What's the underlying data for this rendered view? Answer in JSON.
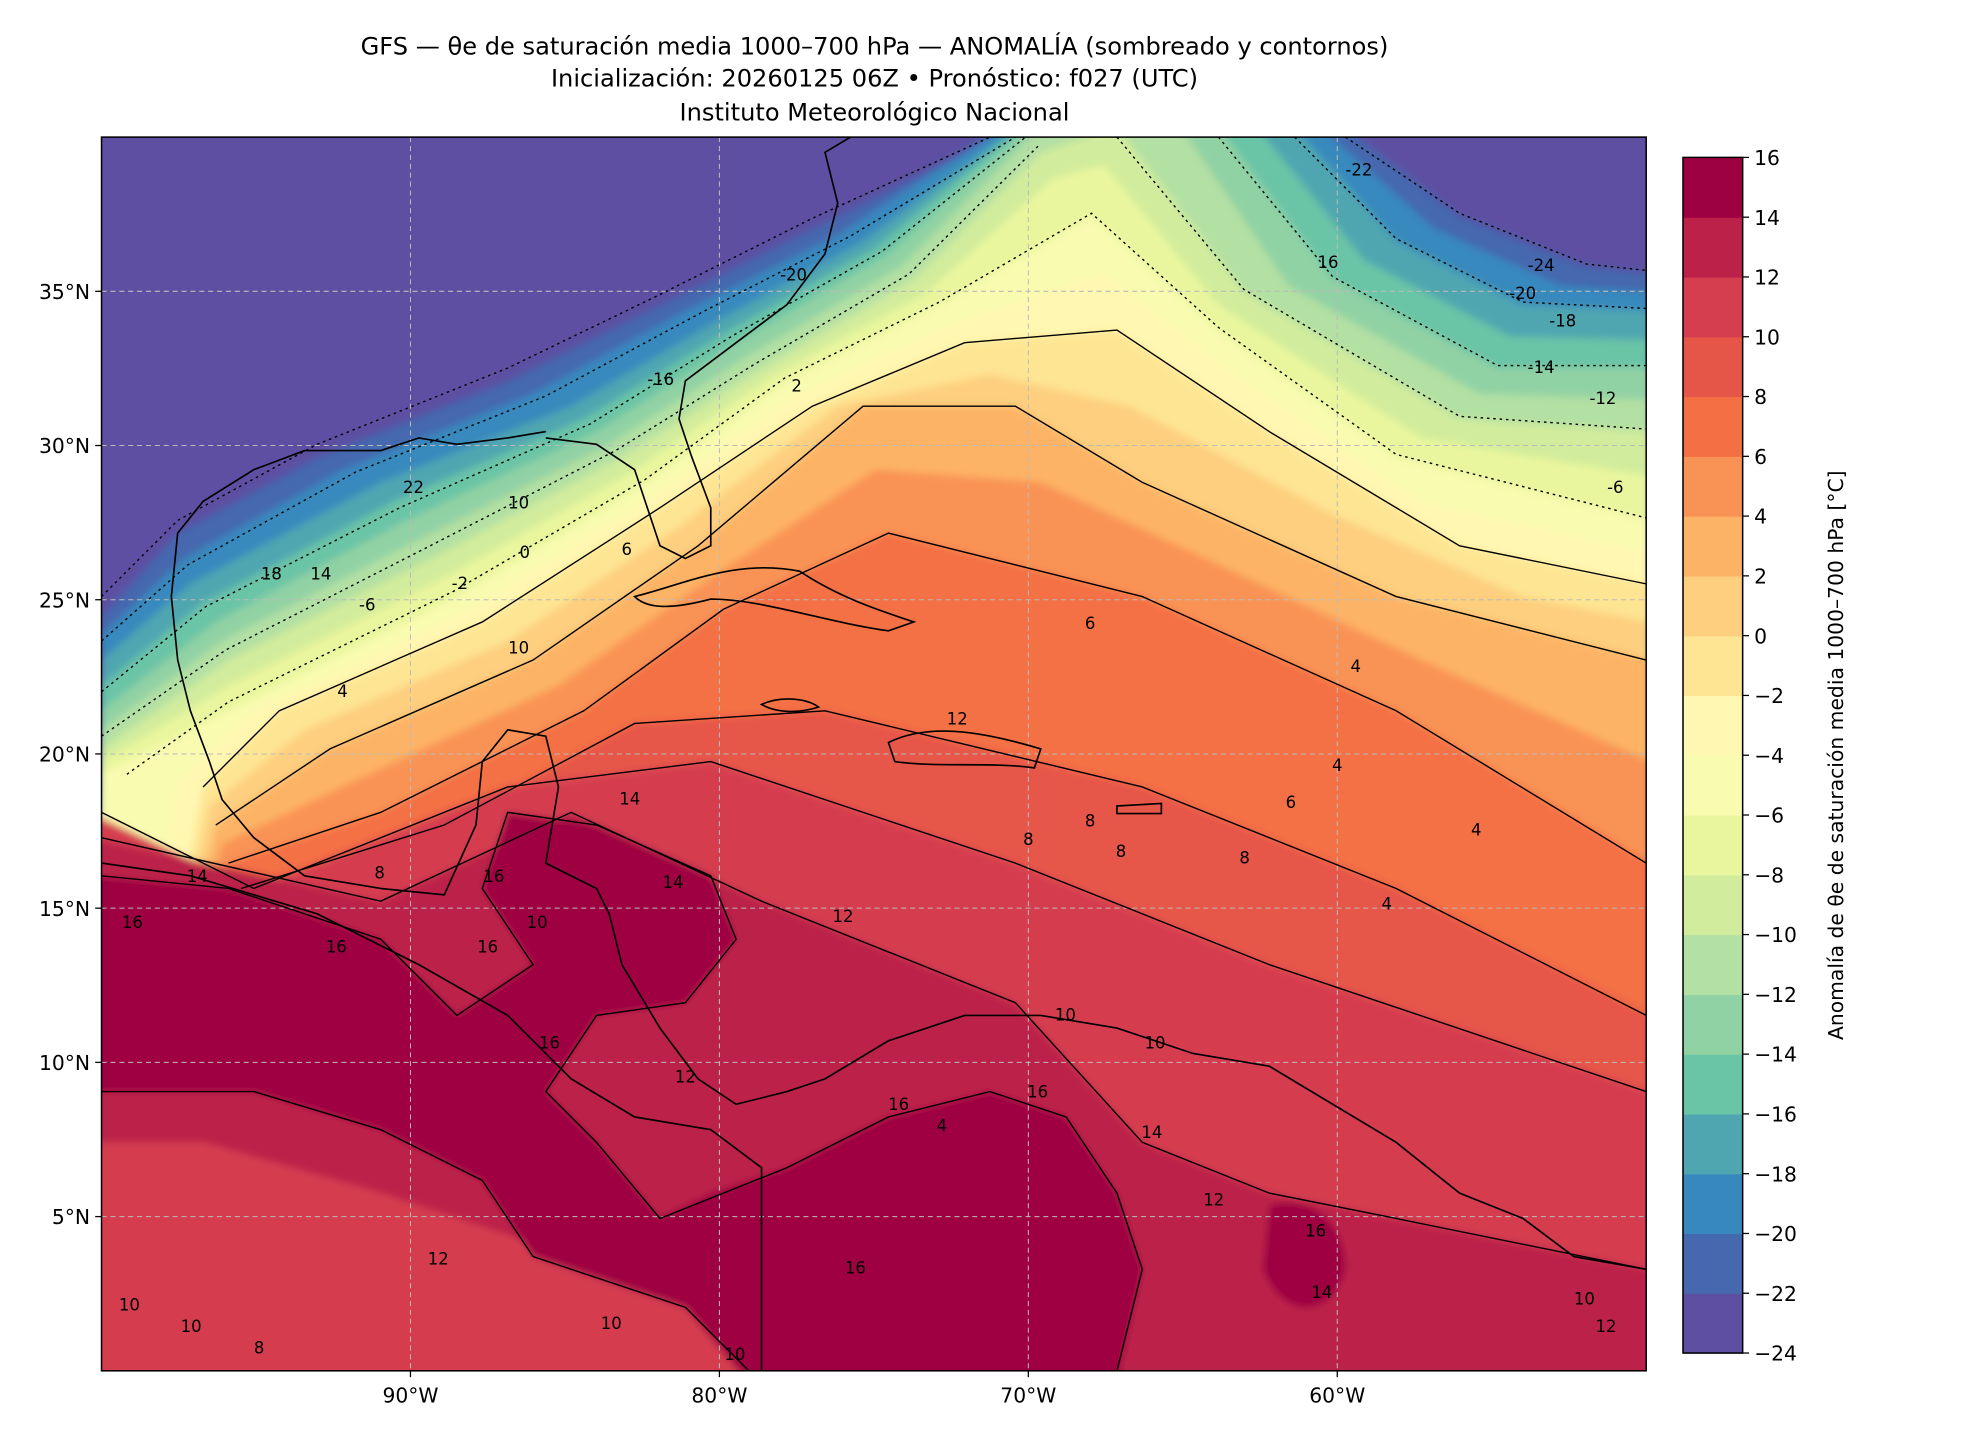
{
  "chart_data": {
    "type": "heatmap",
    "title_lines": [
      "GFS — θe de saturación media 1000–700 hPa — ANOMALÍA (sombreado y contornos)",
      "Inicialización: 20260125 06Z   •   Pronóstico: f027 (UTC)",
      "Instituto Meteorológico Nacional"
    ],
    "lon_range": [
      -100,
      -50
    ],
    "lat_range": [
      0,
      40
    ],
    "x_ticks": [
      {
        "value": -90,
        "label": "90°W"
      },
      {
        "value": -80,
        "label": "80°W"
      },
      {
        "value": -70,
        "label": "70°W"
      },
      {
        "value": -60,
        "label": "60°W"
      }
    ],
    "y_ticks": [
      {
        "value": 35,
        "label": "35°N"
      },
      {
        "value": 30,
        "label": "30°N"
      },
      {
        "value": 25,
        "label": "25°N"
      },
      {
        "value": 20,
        "label": "20°N"
      },
      {
        "value": 15,
        "label": "15°N"
      },
      {
        "value": 10,
        "label": "10°N"
      },
      {
        "value": 5,
        "label": "5°N"
      }
    ],
    "grid": true,
    "colorbar": {
      "label": "Anomalía de θe de saturación media 1000–700 hPa [°C]",
      "range": [
        -24,
        16
      ],
      "ticks": [
        "−24",
        "−22",
        "−20",
        "−18",
        "−16",
        "−14",
        "−12",
        "−10",
        "−8",
        "−6",
        "−4",
        "−2",
        "0",
        "2",
        "4",
        "6",
        "8",
        "10",
        "12",
        "14",
        "16"
      ],
      "colors": [
        "#5e4fa2",
        "#4568ae",
        "#3789bd",
        "#4fa6b0",
        "#6ac4a6",
        "#91d2a4",
        "#b3e0a3",
        "#d1ec9c",
        "#e9f69d",
        "#f8fbb0",
        "#fff7b2",
        "#fee593",
        "#fdcf7f",
        "#fdb365",
        "#f99355",
        "#f47044",
        "#e65648",
        "#d53e4f",
        "#bc2249",
        "#9e0142"
      ]
    },
    "contour_labels": [
      {
        "text": "2",
        "lon": -77.5,
        "lat": 31.9
      },
      {
        "text": "6",
        "lon": -83.0,
        "lat": 26.6
      },
      {
        "text": "0",
        "lon": -86.3,
        "lat": 26.5
      },
      {
        "text": "-2",
        "lon": -88.4,
        "lat": 25.5
      },
      {
        "text": "-6",
        "lon": -91.4,
        "lat": 24.8
      },
      {
        "text": "10",
        "lon": -86.5,
        "lat": 28.1
      },
      {
        "text": "14",
        "lon": -92.9,
        "lat": 25.8
      },
      {
        "text": "18",
        "lon": -94.5,
        "lat": 25.8
      },
      {
        "text": "22",
        "lon": -89.9,
        "lat": 28.6
      },
      {
        "text": "-16",
        "lon": -81.9,
        "lat": 32.1
      },
      {
        "text": "-20",
        "lon": -77.6,
        "lat": 35.5
      },
      {
        "text": "-22",
        "lon": -59.3,
        "lat": 38.9
      },
      {
        "text": "16",
        "lon": -60.3,
        "lat": 35.9
      },
      {
        "text": "-24",
        "lon": -53.4,
        "lat": 35.8
      },
      {
        "text": "-20",
        "lon": -54.0,
        "lat": 34.9
      },
      {
        "text": "-18",
        "lon": -52.7,
        "lat": 34.0
      },
      {
        "text": "-14",
        "lon": -53.4,
        "lat": 32.5
      },
      {
        "text": "-12",
        "lon": -51.4,
        "lat": 31.5
      },
      {
        "text": "-6",
        "lon": -51.0,
        "lat": 28.6
      },
      {
        "text": "10",
        "lon": -86.5,
        "lat": 23.4
      },
      {
        "text": "4",
        "lon": -92.2,
        "lat": 22.0
      },
      {
        "text": "6",
        "lon": -68.0,
        "lat": 24.2
      },
      {
        "text": "4",
        "lon": -59.4,
        "lat": 22.8
      },
      {
        "text": "4",
        "lon": -60.0,
        "lat": 19.6
      },
      {
        "text": "12",
        "lon": -72.3,
        "lat": 21.1
      },
      {
        "text": "14",
        "lon": -82.9,
        "lat": 18.5
      },
      {
        "text": "8",
        "lon": -70.0,
        "lat": 17.2
      },
      {
        "text": "8",
        "lon": -68.0,
        "lat": 17.8
      },
      {
        "text": "8",
        "lon": -67.0,
        "lat": 16.8
      },
      {
        "text": "8",
        "lon": -63.0,
        "lat": 16.6
      },
      {
        "text": "6",
        "lon": -61.5,
        "lat": 18.4
      },
      {
        "text": "4",
        "lon": -55.5,
        "lat": 17.5
      },
      {
        "text": "4",
        "lon": -58.4,
        "lat": 15.1
      },
      {
        "text": "14",
        "lon": -81.5,
        "lat": 15.8
      },
      {
        "text": "12",
        "lon": -76.0,
        "lat": 14.7
      },
      {
        "text": "16",
        "lon": -87.3,
        "lat": 16.0
      },
      {
        "text": "10",
        "lon": -85.9,
        "lat": 14.5
      },
      {
        "text": "16",
        "lon": -87.5,
        "lat": 13.7
      },
      {
        "text": "16",
        "lon": -92.4,
        "lat": 13.7
      },
      {
        "text": "16",
        "lon": -99.0,
        "lat": 14.5
      },
      {
        "text": "14",
        "lon": -96.9,
        "lat": 16.0
      },
      {
        "text": "8",
        "lon": -91.0,
        "lat": 16.1
      },
      {
        "text": "10",
        "lon": -68.8,
        "lat": 11.5
      },
      {
        "text": "10",
        "lon": -65.9,
        "lat": 10.6
      },
      {
        "text": "16",
        "lon": -85.5,
        "lat": 10.6
      },
      {
        "text": "12",
        "lon": -81.1,
        "lat": 9.5
      },
      {
        "text": "16",
        "lon": -69.7,
        "lat": 9.0
      },
      {
        "text": "14",
        "lon": -66.0,
        "lat": 7.7
      },
      {
        "text": "16",
        "lon": -74.2,
        "lat": 8.6
      },
      {
        "text": "4",
        "lon": -72.8,
        "lat": 7.9
      },
      {
        "text": "12",
        "lon": -64.0,
        "lat": 5.5
      },
      {
        "text": "16",
        "lon": -60.7,
        "lat": 4.5
      },
      {
        "text": "16",
        "lon": -75.6,
        "lat": 3.3
      },
      {
        "text": "12",
        "lon": -89.1,
        "lat": 3.6
      },
      {
        "text": "10",
        "lon": -99.1,
        "lat": 2.1
      },
      {
        "text": "10",
        "lon": -97.1,
        "lat": 1.4
      },
      {
        "text": "8",
        "lon": -94.9,
        "lat": 0.7
      },
      {
        "text": "10",
        "lon": -83.5,
        "lat": 1.5
      },
      {
        "text": "10",
        "lon": -79.5,
        "lat": 0.5
      },
      {
        "text": "14",
        "lon": -60.5,
        "lat": 2.5
      },
      {
        "text": "10",
        "lon": -52.0,
        "lat": 2.3
      },
      {
        "text": "12",
        "lon": -51.3,
        "lat": 1.4
      }
    ]
  }
}
